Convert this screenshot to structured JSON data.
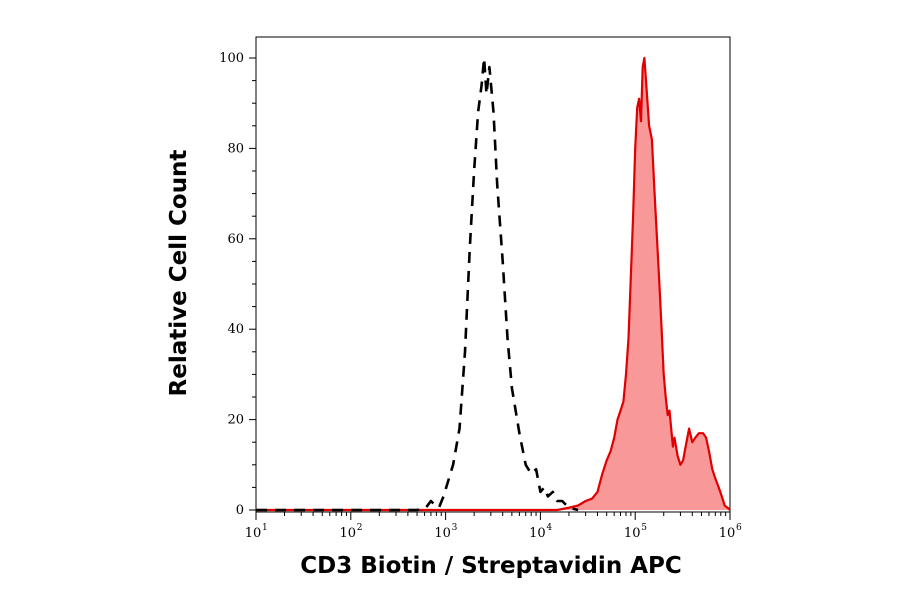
{
  "chart_data": {
    "type": "area",
    "xlabel": "CD3 Biotin / Streptavidin APC",
    "ylabel": "Relative Cell Count",
    "xscale": "log",
    "xlim": [
      10,
      1000000
    ],
    "ylim": [
      0,
      100
    ],
    "x_ticks": [
      {
        "base": "10",
        "exp": "1",
        "value": 10
      },
      {
        "base": "10",
        "exp": "2",
        "value": 100
      },
      {
        "base": "10",
        "exp": "3",
        "value": 1000
      },
      {
        "base": "10",
        "exp": "4",
        "value": 10000
      },
      {
        "base": "10",
        "exp": "5",
        "value": 100000
      },
      {
        "base": "10",
        "exp": "6",
        "value": 1000000
      }
    ],
    "y_ticks": [
      0,
      20,
      40,
      60,
      80,
      100
    ],
    "grid": false,
    "legend": "none",
    "series": [
      {
        "style": "dashed-line",
        "color": "#000000",
        "x": [
          8,
          300,
          400,
          500,
          620,
          700,
          780,
          850,
          950,
          1050,
          1200,
          1400,
          1600,
          1800,
          2000,
          2200,
          2400,
          2550,
          2700,
          2900,
          3200,
          3500,
          4000,
          4500,
          5000,
          6000,
          7000,
          8000,
          9000,
          10000,
          11000,
          12000,
          13500,
          15000,
          17000,
          20000,
          25000
        ],
        "y": [
          0,
          0,
          0,
          0,
          0.5,
          2,
          1,
          0.5,
          3,
          6,
          10,
          18,
          35,
          58,
          75,
          88,
          94,
          100,
          92,
          98,
          88,
          72,
          55,
          38,
          27,
          17,
          10,
          8,
          9,
          4,
          5,
          3,
          4,
          2,
          2,
          0.5,
          0
        ]
      },
      {
        "style": "filled-area",
        "color": "#e00000",
        "fill": "#f89898",
        "x": [
          10,
          15000,
          20000,
          25000,
          30000,
          35000,
          40000,
          45000,
          50000,
          55000,
          60000,
          65000,
          70000,
          75000,
          80000,
          85000,
          90000,
          95000,
          100000,
          105000,
          110000,
          115000,
          120000,
          125000,
          130000,
          140000,
          150000,
          160000,
          170000,
          180000,
          190000,
          200000,
          210000,
          220000,
          230000,
          240000,
          250000,
          260000,
          280000,
          300000,
          320000,
          340000,
          370000,
          400000,
          430000,
          470000,
          520000,
          560000,
          600000,
          650000,
          700000,
          760000,
          820000,
          880000,
          940000,
          1000000
        ],
        "y": [
          0,
          0,
          0.5,
          1,
          2,
          2.5,
          4,
          8,
          11,
          13,
          16,
          20,
          22,
          24,
          30,
          38,
          52,
          65,
          80,
          89,
          91,
          86,
          98,
          100,
          95,
          85,
          82,
          70,
          60,
          50,
          40,
          30,
          25,
          21,
          22,
          18,
          14,
          16,
          12,
          10,
          11,
          14,
          18,
          15,
          16,
          17,
          17,
          16,
          13,
          9,
          7,
          5,
          3,
          1,
          0.5,
          0
        ]
      }
    ]
  }
}
